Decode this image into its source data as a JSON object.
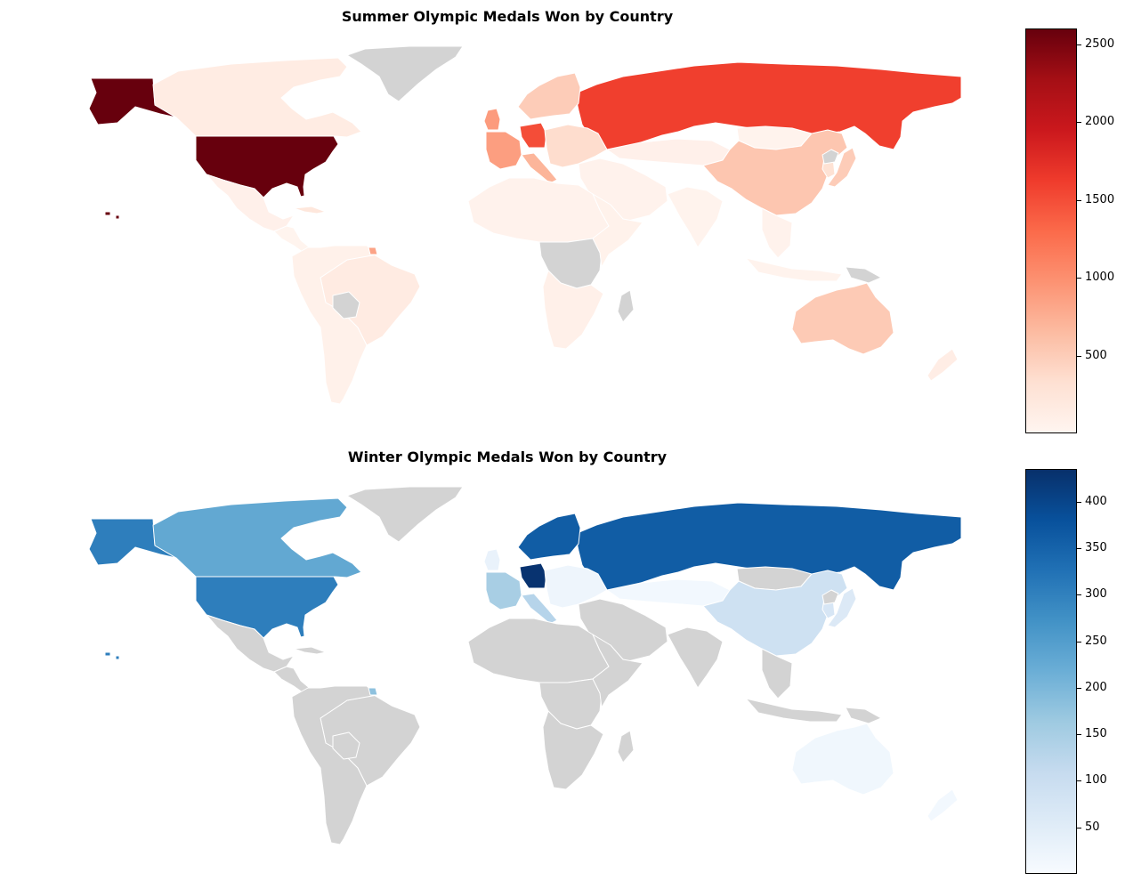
{
  "maps": [
    {
      "id": "summer",
      "title": "Summer Olympic Medals Won by Country",
      "colormap": [
        "#fff5f0",
        "#fee0d2",
        "#fcbba1",
        "#fc9272",
        "#fb6a4a",
        "#ef3b2c",
        "#cb181d",
        "#a50f15",
        "#67000d"
      ],
      "no_data_color": "#d3d3d3",
      "colorbar": {
        "min": 0,
        "max": 2600,
        "ticks": [
          500,
          1000,
          1500,
          2000,
          2500
        ],
        "tick_labels": [
          "500",
          "1000",
          "1500",
          "2000",
          "2500"
        ]
      },
      "regions": [
        {
          "name": "United States",
          "value": 2600
        },
        {
          "name": "Alaska",
          "value": 2600
        },
        {
          "name": "Canada",
          "value": 140
        },
        {
          "name": "Greenland",
          "value": null
        },
        {
          "name": "Mexico",
          "value": 70
        },
        {
          "name": "Central America",
          "value": 20
        },
        {
          "name": "Cuba",
          "value": 220
        },
        {
          "name": "Brazil",
          "value": 150
        },
        {
          "name": "Rest of South America",
          "value": 60
        },
        {
          "name": "French Guiana",
          "value": 840
        },
        {
          "name": "Bolivia",
          "value": null
        },
        {
          "name": "Russia",
          "value": 1600
        },
        {
          "name": "Germany",
          "value": 1500
        },
        {
          "name": "France",
          "value": 880
        },
        {
          "name": "United Kingdom",
          "value": 900
        },
        {
          "name": "Italy",
          "value": 700
        },
        {
          "name": "Scandinavia",
          "value": 500
        },
        {
          "name": "Eastern Europe",
          "value": 350
        },
        {
          "name": "Kazakhstan",
          "value": 70
        },
        {
          "name": "Mongolia",
          "value": 30
        },
        {
          "name": "China",
          "value": 550
        },
        {
          "name": "Japan",
          "value": 500
        },
        {
          "name": "Korea",
          "value": 300
        },
        {
          "name": "North Korea",
          "value": null
        },
        {
          "name": "India",
          "value": 30
        },
        {
          "name": "Middle East",
          "value": 40
        },
        {
          "name": "Southeast Asia",
          "value": 40
        },
        {
          "name": "Indonesia",
          "value": 30
        },
        {
          "name": "Papua New Guinea",
          "value": null
        },
        {
          "name": "Australia",
          "value": 520
        },
        {
          "name": "New Zealand",
          "value": 120
        },
        {
          "name": "North Africa",
          "value": 40
        },
        {
          "name": "Central Africa",
          "value": null
        },
        {
          "name": "Southern Africa",
          "value": 80
        },
        {
          "name": "East Africa",
          "value": 50
        },
        {
          "name": "Madagascar",
          "value": null
        }
      ]
    },
    {
      "id": "winter",
      "title": "Winter Olympic Medals Won by Country",
      "colormap": [
        "#f7fbff",
        "#deebf7",
        "#c6dbef",
        "#9ecae1",
        "#6baed6",
        "#4292c6",
        "#2171b5",
        "#08519c",
        "#08306b"
      ],
      "no_data_color": "#d3d3d3",
      "colorbar": {
        "min": 0,
        "max": 435,
        "ticks": [
          50,
          100,
          150,
          200,
          250,
          300,
          350,
          400
        ],
        "tick_labels": [
          "50",
          "100",
          "150",
          "200",
          "250",
          "300",
          "350",
          "400"
        ]
      },
      "regions": [
        {
          "name": "United States",
          "value": 305
        },
        {
          "name": "Alaska",
          "value": 305
        },
        {
          "name": "Canada",
          "value": 230
        },
        {
          "name": "Greenland",
          "value": null
        },
        {
          "name": "Mexico",
          "value": null
        },
        {
          "name": "Central America",
          "value": null
        },
        {
          "name": "Cuba",
          "value": null
        },
        {
          "name": "Brazil",
          "value": null
        },
        {
          "name": "Rest of South America",
          "value": null
        },
        {
          "name": "French Guiana",
          "value": 180
        },
        {
          "name": "Bolivia",
          "value": null
        },
        {
          "name": "Russia",
          "value": 360
        },
        {
          "name": "Germany",
          "value": 430
        },
        {
          "name": "France",
          "value": 150
        },
        {
          "name": "United Kingdom",
          "value": 30
        },
        {
          "name": "Italy",
          "value": 130
        },
        {
          "name": "Scandinavia",
          "value": 360
        },
        {
          "name": "Eastern Europe",
          "value": 20
        },
        {
          "name": "Kazakhstan",
          "value": 10
        },
        {
          "name": "Mongolia",
          "value": null
        },
        {
          "name": "China",
          "value": 90
        },
        {
          "name": "Japan",
          "value": 60
        },
        {
          "name": "Korea",
          "value": 70
        },
        {
          "name": "North Korea",
          "value": null
        },
        {
          "name": "India",
          "value": null
        },
        {
          "name": "Middle East",
          "value": null
        },
        {
          "name": "Southeast Asia",
          "value": null
        },
        {
          "name": "Indonesia",
          "value": null
        },
        {
          "name": "Papua New Guinea",
          "value": null
        },
        {
          "name": "Australia",
          "value": 15
        },
        {
          "name": "New Zealand",
          "value": 10
        },
        {
          "name": "North Africa",
          "value": null
        },
        {
          "name": "Central Africa",
          "value": null
        },
        {
          "name": "Southern Africa",
          "value": null
        },
        {
          "name": "East Africa",
          "value": null
        },
        {
          "name": "Madagascar",
          "value": null
        }
      ]
    }
  ]
}
